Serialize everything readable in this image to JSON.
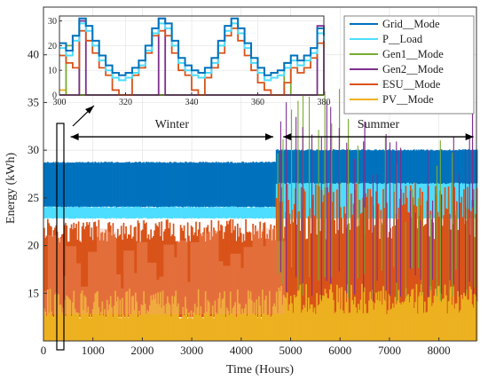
{
  "chart_data": [
    {
      "type": "line",
      "xlabel": "Time (Hours)",
      "ylabel": "Energy (kWh)",
      "xlim": [
        0,
        8760
      ],
      "ylim": [
        10,
        45
      ],
      "xticks": [
        0,
        1000,
        2000,
        3000,
        4000,
        5000,
        6000,
        7000,
        8000
      ],
      "yticks": [
        15,
        20,
        25,
        30,
        35,
        40
      ],
      "grid": true,
      "legend_position": "top-right",
      "annotations": [
        {
          "text": "Winter",
          "from_x": 550,
          "to_x": 4650,
          "y": 31.4
        },
        {
          "text": "Summer",
          "from_x": 4850,
          "to_x": 8700,
          "y": 31.4
        }
      ],
      "series": [
        {
          "name": "Grid__Mode",
          "color": "#0072BD",
          "band": [
            24.0,
            28.8
          ],
          "winter_band": [
            24.0,
            28.8
          ],
          "summer_band": [
            24.0,
            30.1
          ]
        },
        {
          "name": "P__Load",
          "color": "#4DDDFF",
          "band": [
            22.8,
            24.1
          ],
          "winter_band": [
            22.8,
            24.1
          ],
          "summer_band": [
            22.8,
            26.6
          ]
        },
        {
          "name": "Gen1__Mode",
          "color": "#77AC30",
          "spike_peaks": [
            36.5,
            31.0,
            34.0,
            29.0,
            33.5,
            27.0
          ]
        },
        {
          "name": "Gen2__Mode",
          "color": "#7E2F8E",
          "spike_peaks": [
            35.5,
            34.0,
            33.0,
            32.0,
            34.0,
            33.5
          ]
        },
        {
          "name": "ESU__Mode",
          "color": "#D95319",
          "band": [
            12.5,
            22.8
          ],
          "winter_band": [
            12.5,
            22.8
          ],
          "summer_band": [
            12.5,
            26.6
          ]
        },
        {
          "name": "PV__Mode",
          "color": "#EDB120",
          "band": [
            10.0,
            15.5
          ],
          "winter_band": [
            10.0,
            15.5
          ],
          "summer_band": [
            10.0,
            16.0
          ]
        }
      ]
    },
    {
      "type": "line",
      "inset": true,
      "xlim": [
        300,
        380
      ],
      "ylim": [
        0,
        32
      ],
      "xticks": [
        300,
        320,
        340,
        360,
        380
      ],
      "yticks": [
        0,
        10,
        20,
        30
      ],
      "x": [
        300,
        302,
        304,
        306,
        308,
        310,
        312,
        314,
        316,
        318,
        320,
        322,
        324,
        326,
        328,
        330,
        332,
        334,
        336,
        338,
        340,
        342,
        344,
        346,
        348,
        350,
        352,
        354,
        356,
        358,
        360,
        362,
        364,
        366,
        368,
        370,
        372,
        374,
        376,
        378,
        380
      ],
      "series": [
        {
          "name": "Grid__Mode",
          "values": [
            21,
            18,
            24,
            31,
            28,
            22,
            16,
            12,
            9,
            8,
            9,
            11,
            14,
            20,
            27,
            31,
            29,
            22,
            15,
            12,
            10,
            9,
            11,
            15,
            22,
            28,
            31,
            27,
            21,
            15,
            11,
            8,
            9,
            10,
            13,
            16,
            14,
            16,
            19,
            27,
            24
          ]
        },
        {
          "name": "P__Load",
          "values": [
            19,
            16,
            22,
            29,
            26,
            20,
            14,
            10,
            7,
            6,
            7,
            9,
            12,
            18,
            25,
            29,
            27,
            20,
            13,
            10,
            8,
            7,
            9,
            13,
            20,
            26,
            29,
            25,
            19,
            13,
            9,
            6,
            7,
            8,
            11,
            14,
            12,
            14,
            17,
            25,
            22
          ]
        },
        {
          "name": "Gen1__Mode",
          "values": [
            0,
            20,
            24,
            0,
            0,
            0,
            0,
            0,
            0,
            0,
            0,
            0,
            0,
            0,
            0,
            0,
            0,
            0,
            0,
            0,
            0,
            0,
            0,
            0,
            0,
            0,
            0,
            0,
            0,
            0,
            0,
            0,
            0,
            0,
            13,
            0,
            0,
            0,
            0,
            0,
            0
          ]
        },
        {
          "name": "Gen2__Mode",
          "values": [
            0,
            0,
            0,
            30,
            0,
            0,
            0,
            0,
            0,
            0,
            0,
            0,
            0,
            0,
            0,
            31,
            0,
            0,
            0,
            0,
            0,
            0,
            0,
            0,
            0,
            0,
            0,
            0,
            0,
            0,
            0,
            0,
            0,
            0,
            0,
            0,
            0,
            0,
            0,
            28,
            0
          ]
        },
        {
          "name": "ESU__Mode",
          "values": [
            16,
            13,
            11,
            26,
            22,
            17,
            11,
            8,
            2,
            0,
            0,
            8,
            11,
            17,
            24,
            26,
            24,
            17,
            10,
            8,
            2,
            0,
            7,
            11,
            17,
            24,
            27,
            22,
            16,
            10,
            5,
            2,
            0,
            0,
            5,
            11,
            9,
            11,
            15,
            21,
            19
          ]
        },
        {
          "name": "PV__Mode",
          "values": [
            2,
            0,
            0,
            0,
            0,
            0,
            0,
            0,
            0,
            0,
            0,
            0,
            0,
            0,
            0,
            0,
            0,
            0,
            0,
            0,
            0,
            0,
            0,
            0,
            0,
            0,
            0,
            0,
            0,
            0,
            0,
            0,
            0,
            0,
            0,
            0,
            0,
            0,
            0,
            0,
            0
          ]
        }
      ]
    }
  ]
}
